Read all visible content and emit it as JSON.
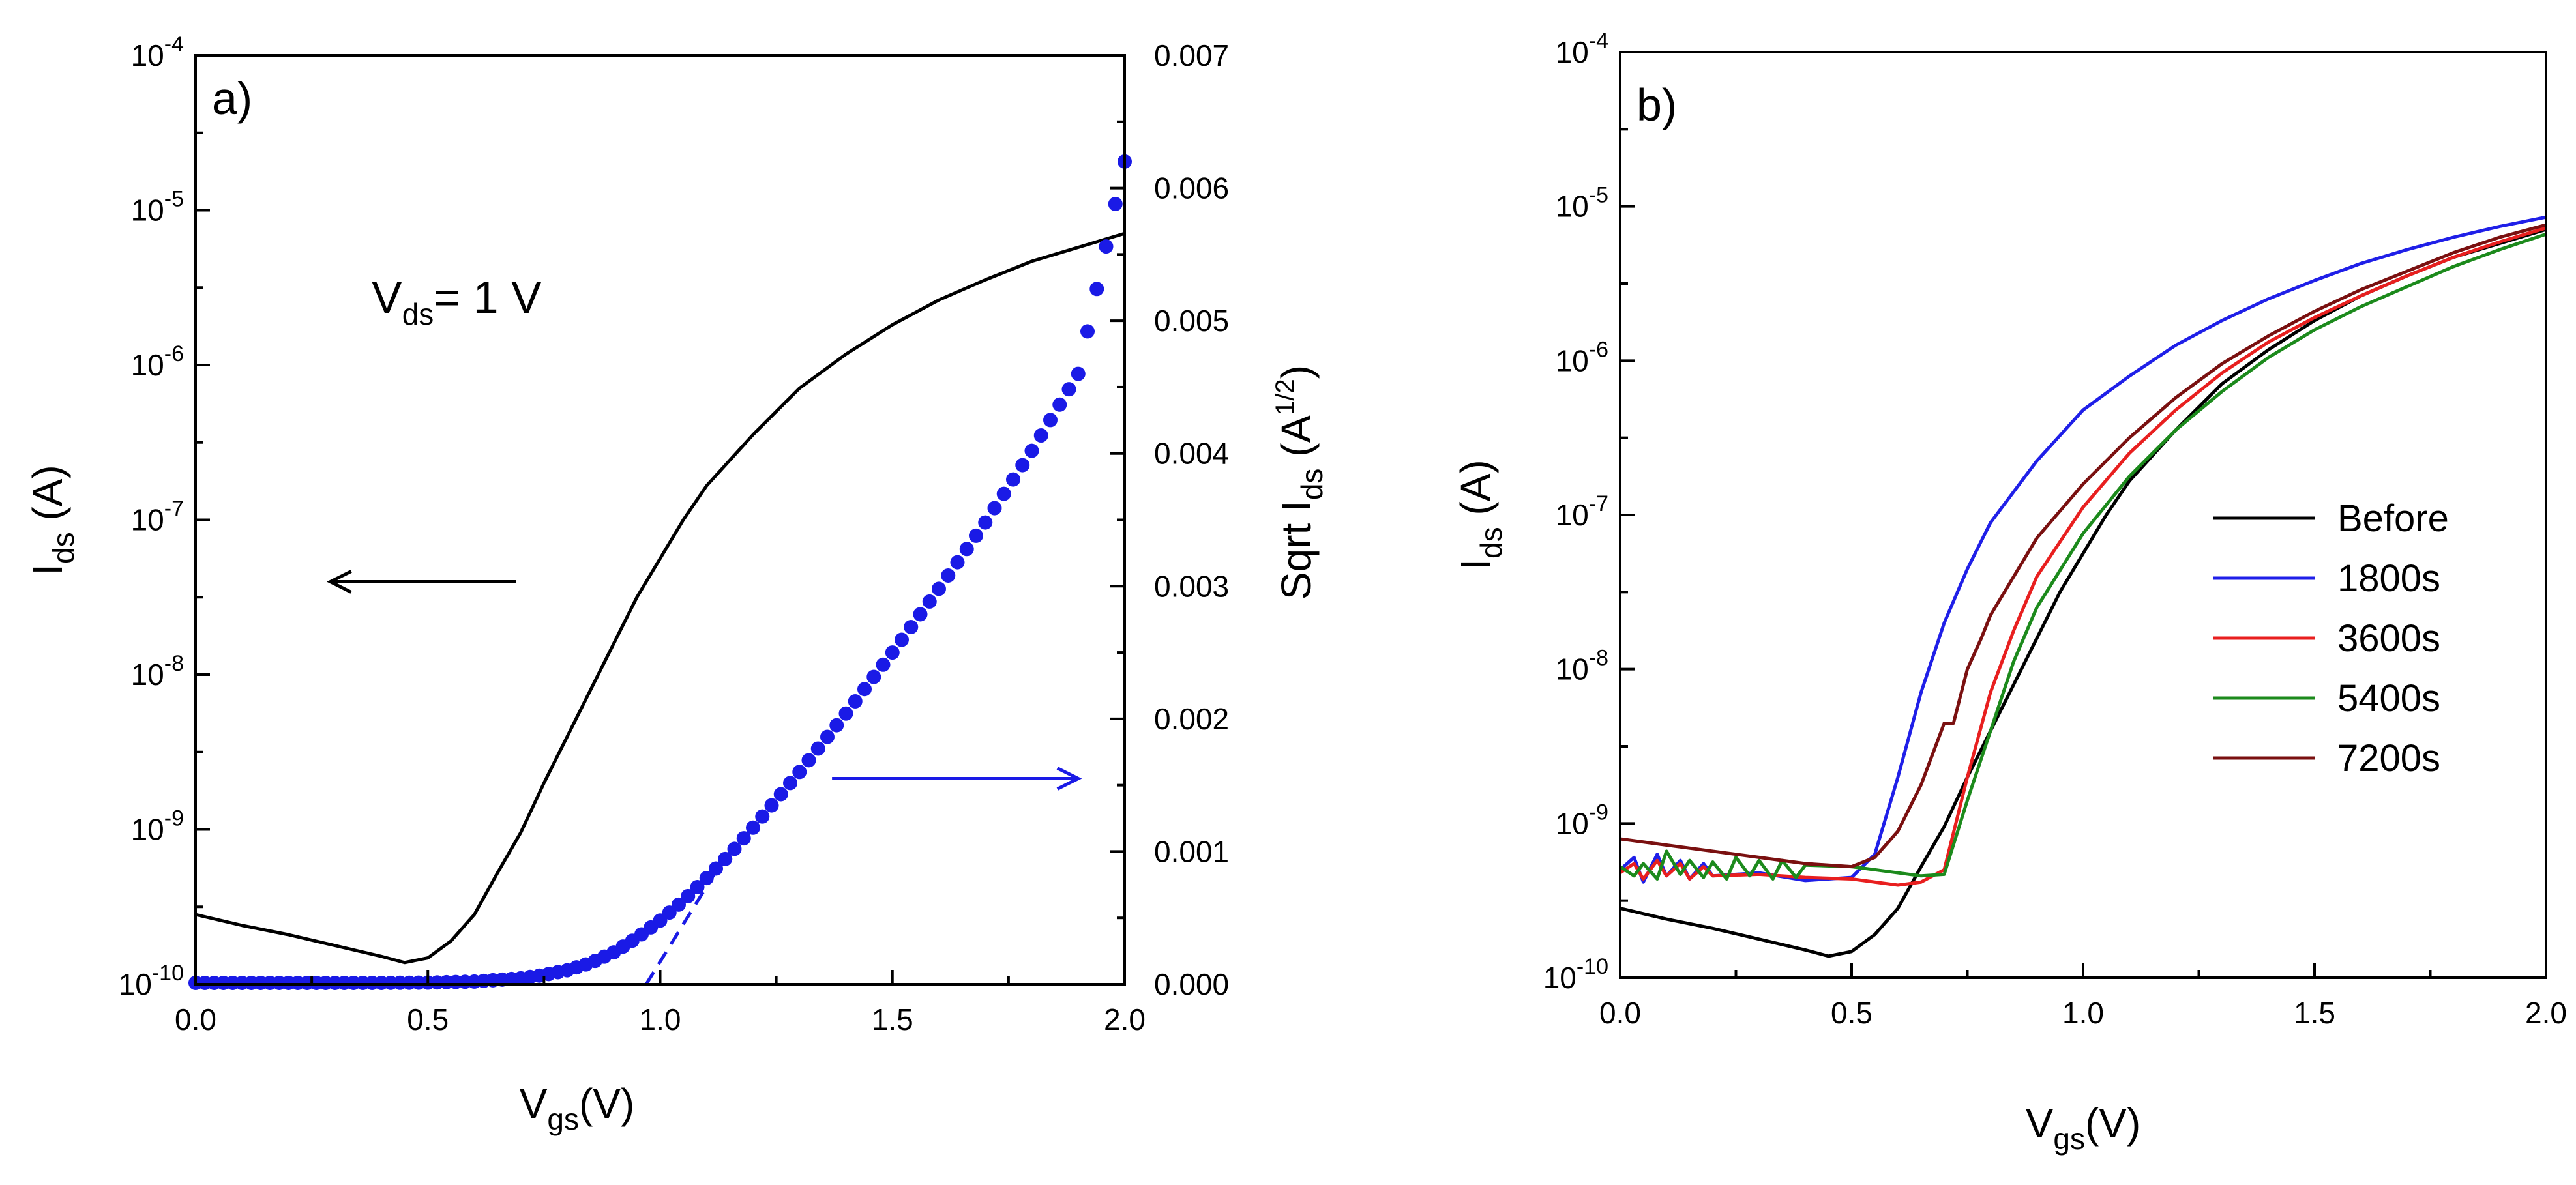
{
  "chart_data": [
    {
      "panel": "a",
      "type": "line",
      "panel_label": "a)",
      "annotation": {
        "main": "V",
        "sub": "ds",
        "rest": "= 1 V"
      },
      "xlabel": {
        "main": "V",
        "sub": "gs",
        "rest": "(V)"
      },
      "ylabel": {
        "main": "I",
        "sub": "ds",
        "rest": " (A)"
      },
      "y2label": {
        "main": "Sqrt I",
        "sub": "ds",
        "rest": " (A",
        "sup": "1/2",
        "end": ")"
      },
      "xlim": [
        0,
        2
      ],
      "ylim_log10": [
        -10,
        -4
      ],
      "y2lim": [
        0,
        0.007
      ],
      "x_ticks": [
        "0.0",
        "0.5",
        "1.0",
        "1.5",
        "2.0"
      ],
      "y_ticks": [
        {
          "base": "10",
          "exp": "-10"
        },
        {
          "base": "10",
          "exp": "-9"
        },
        {
          "base": "10",
          "exp": "-8"
        },
        {
          "base": "10",
          "exp": "-7"
        },
        {
          "base": "10",
          "exp": "-6"
        },
        {
          "base": "10",
          "exp": "-5"
        },
        {
          "base": "10",
          "exp": "-4"
        }
      ],
      "y2_ticks": [
        "0.000",
        "0.001",
        "0.002",
        "0.003",
        "0.004",
        "0.005",
        "0.006",
        "0.007"
      ],
      "series": [
        {
          "name": "Ids (log, left axis)",
          "color": "#000000",
          "x": [
            0.0,
            0.1,
            0.2,
            0.3,
            0.4,
            0.45,
            0.5,
            0.55,
            0.6,
            0.65,
            0.7,
            0.75,
            0.8,
            0.85,
            0.9,
            0.95,
            1.0,
            1.05,
            1.1,
            1.2,
            1.3,
            1.4,
            1.5,
            1.6,
            1.7,
            1.8,
            1.9,
            2.0
          ],
          "log10_y": [
            -9.55,
            -9.62,
            -9.68,
            -9.75,
            -9.82,
            -9.86,
            -9.83,
            -9.72,
            -9.55,
            -9.28,
            -9.02,
            -8.7,
            -8.4,
            -8.1,
            -7.8,
            -7.5,
            -7.25,
            -7.0,
            -6.78,
            -6.45,
            -6.15,
            -5.93,
            -5.74,
            -5.58,
            -5.45,
            -5.33,
            -5.24,
            -5.15
          ]
        },
        {
          "name": "Sqrt Ids (right axis)",
          "color": "#1a1ae6",
          "style": "markers",
          "x": [
            0.0,
            0.1,
            0.2,
            0.3,
            0.4,
            0.5,
            0.6,
            0.7,
            0.75,
            0.8,
            0.85,
            0.9,
            0.95,
            1.0,
            1.05,
            1.1,
            1.15,
            1.2,
            1.3,
            1.4,
            1.5,
            1.6,
            1.7,
            1.8,
            1.9,
            2.0
          ],
          "y": [
            1e-05,
            1e-05,
            1e-05,
            1e-05,
            1e-05,
            1.2e-05,
            2e-05,
            4.5e-05,
            7e-05,
            0.000105,
            0.00016,
            0.00024,
            0.00035,
            0.00048,
            0.00063,
            0.0008,
            0.00098,
            0.00118,
            0.0016,
            0.00204,
            0.0025,
            0.00298,
            0.00348,
            0.00402,
            0.0046,
            0.0062
          ]
        }
      ],
      "fit_line": {
        "color": "#1a1ae6",
        "x": [
          0.97,
          1.12
        ],
        "y": [
          0.0,
          0.00085
        ]
      },
      "arrows": [
        {
          "direction": "left",
          "color": "#000000",
          "x_from": 0.69,
          "x_to": 0.29,
          "log10_y": -7.4
        },
        {
          "direction": "right",
          "color": "#1a1ae6",
          "x_from": 1.37,
          "x_to": 1.9,
          "y2": 0.00155
        }
      ]
    },
    {
      "panel": "b",
      "type": "line",
      "panel_label": "b)",
      "xlabel": {
        "main": "V",
        "sub": "gs",
        "rest": "(V)"
      },
      "ylabel": {
        "main": "I",
        "sub": "ds",
        "rest": " (A)"
      },
      "xlim": [
        0,
        2
      ],
      "ylim_log10": [
        -10,
        -4
      ],
      "x_ticks": [
        "0.0",
        "0.5",
        "1.0",
        "1.5",
        "2.0"
      ],
      "y_ticks": [
        {
          "base": "10",
          "exp": "-10"
        },
        {
          "base": "10",
          "exp": "-9"
        },
        {
          "base": "10",
          "exp": "-8"
        },
        {
          "base": "10",
          "exp": "-7"
        },
        {
          "base": "10",
          "exp": "-6"
        },
        {
          "base": "10",
          "exp": "-5"
        },
        {
          "base": "10",
          "exp": "-4"
        }
      ],
      "legend": {
        "position": "right-middle"
      },
      "series": [
        {
          "name": "Before",
          "color": "#000000",
          "x": [
            0.0,
            0.1,
            0.2,
            0.3,
            0.4,
            0.45,
            0.5,
            0.55,
            0.6,
            0.65,
            0.7,
            0.75,
            0.8,
            0.85,
            0.9,
            0.95,
            1.0,
            1.05,
            1.1,
            1.2,
            1.3,
            1.4,
            1.5,
            1.6,
            1.7,
            1.8,
            1.9,
            2.0
          ],
          "log10_y": [
            -9.55,
            -9.62,
            -9.68,
            -9.75,
            -9.82,
            -9.86,
            -9.83,
            -9.72,
            -9.55,
            -9.28,
            -9.02,
            -8.7,
            -8.4,
            -8.1,
            -7.8,
            -7.5,
            -7.25,
            -7.0,
            -6.78,
            -6.45,
            -6.15,
            -5.93,
            -5.74,
            -5.58,
            -5.45,
            -5.33,
            -5.24,
            -5.15
          ]
        },
        {
          "name": "1800s",
          "color": "#1f1fe8",
          "x": [
            0.0,
            0.03,
            0.05,
            0.08,
            0.1,
            0.13,
            0.15,
            0.18,
            0.2,
            0.3,
            0.4,
            0.5,
            0.55,
            0.6,
            0.65,
            0.7,
            0.75,
            0.8,
            0.9,
            1.0,
            1.1,
            1.2,
            1.3,
            1.4,
            1.5,
            1.6,
            1.7,
            1.8,
            1.9,
            2.0
          ],
          "log10_y": [
            -9.3,
            -9.22,
            -9.38,
            -9.2,
            -9.34,
            -9.24,
            -9.36,
            -9.26,
            -9.34,
            -9.32,
            -9.37,
            -9.35,
            -9.2,
            -8.7,
            -8.15,
            -7.7,
            -7.35,
            -7.05,
            -6.65,
            -6.32,
            -6.1,
            -5.9,
            -5.74,
            -5.6,
            -5.48,
            -5.37,
            -5.28,
            -5.2,
            -5.13,
            -5.07
          ]
        },
        {
          "name": "3600s",
          "color": "#e81f1f",
          "x": [
            0.0,
            0.03,
            0.05,
            0.08,
            0.1,
            0.13,
            0.15,
            0.18,
            0.2,
            0.3,
            0.4,
            0.5,
            0.6,
            0.65,
            0.7,
            0.75,
            0.8,
            0.85,
            0.9,
            1.0,
            1.1,
            1.2,
            1.3,
            1.4,
            1.5,
            1.6,
            1.7,
            1.8,
            1.9,
            2.0
          ],
          "log10_y": [
            -9.32,
            -9.26,
            -9.36,
            -9.24,
            -9.34,
            -9.26,
            -9.36,
            -9.28,
            -9.34,
            -9.33,
            -9.35,
            -9.36,
            -9.4,
            -9.38,
            -9.3,
            -8.7,
            -8.15,
            -7.75,
            -7.4,
            -6.95,
            -6.6,
            -6.32,
            -6.08,
            -5.88,
            -5.72,
            -5.58,
            -5.45,
            -5.33,
            -5.23,
            -5.14
          ]
        },
        {
          "name": "5400s",
          "color": "#1c8a1c",
          "x": [
            0.0,
            0.03,
            0.05,
            0.08,
            0.1,
            0.13,
            0.15,
            0.18,
            0.2,
            0.23,
            0.25,
            0.28,
            0.3,
            0.33,
            0.35,
            0.38,
            0.4,
            0.5,
            0.6,
            0.65,
            0.7,
            0.75,
            0.8,
            0.85,
            0.9,
            1.0,
            1.1,
            1.2,
            1.3,
            1.4,
            1.5,
            1.6,
            1.7,
            1.8,
            1.9,
            2.0
          ],
          "log10_y": [
            -9.28,
            -9.34,
            -9.26,
            -9.36,
            -9.18,
            -9.33,
            -9.24,
            -9.35,
            -9.25,
            -9.36,
            -9.22,
            -9.34,
            -9.24,
            -9.36,
            -9.24,
            -9.35,
            -9.27,
            -9.28,
            -9.32,
            -9.34,
            -9.33,
            -8.85,
            -8.4,
            -7.95,
            -7.6,
            -7.12,
            -6.75,
            -6.45,
            -6.2,
            -5.98,
            -5.8,
            -5.65,
            -5.52,
            -5.39,
            -5.28,
            -5.18
          ]
        },
        {
          "name": "7200s",
          "color": "#7a1010",
          "x": [
            0.0,
            0.1,
            0.2,
            0.3,
            0.4,
            0.5,
            0.55,
            0.6,
            0.65,
            0.7,
            0.72,
            0.75,
            0.78,
            0.8,
            0.85,
            0.9,
            1.0,
            1.1,
            1.2,
            1.3,
            1.4,
            1.5,
            1.6,
            1.7,
            1.8,
            1.9,
            2.0
          ],
          "log10_y": [
            -9.1,
            -9.14,
            -9.18,
            -9.22,
            -9.26,
            -9.28,
            -9.22,
            -9.05,
            -8.75,
            -8.35,
            -8.35,
            -8.0,
            -7.8,
            -7.65,
            -7.4,
            -7.15,
            -6.8,
            -6.5,
            -6.24,
            -6.02,
            -5.84,
            -5.68,
            -5.54,
            -5.42,
            -5.3,
            -5.2,
            -5.12
          ]
        }
      ]
    }
  ]
}
